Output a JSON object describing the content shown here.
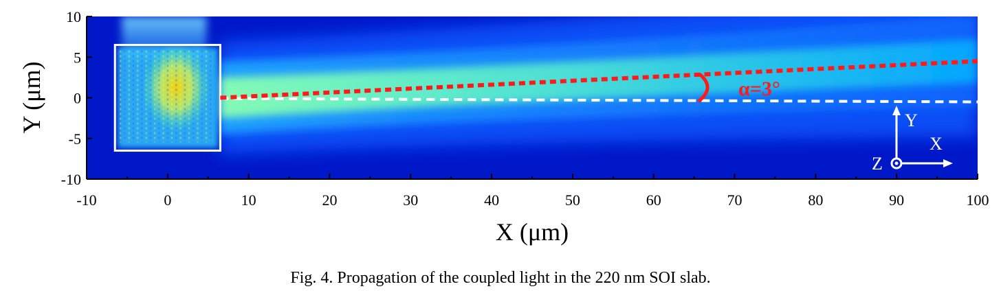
{
  "chart_data": {
    "type": "heatmap",
    "title": "",
    "xlabel": "X (μm)",
    "ylabel": "Y (μm)",
    "xlim": [
      -10,
      100
    ],
    "ylim": [
      -10,
      10
    ],
    "x_ticks": [
      "-10",
      "0",
      "10",
      "20",
      "30",
      "40",
      "50",
      "60",
      "70",
      "80",
      "90",
      "100"
    ],
    "y_ticks": [
      "10",
      "5",
      "0",
      "-5",
      "-10"
    ],
    "colormap": "jet",
    "source_box": {
      "x_range": [
        -6.5,
        6.5
      ],
      "y_range": [
        -6.5,
        6.5
      ],
      "color": "#ffffff"
    },
    "beam": {
      "start": [
        6.5,
        0
      ],
      "end": [
        100,
        4.5
      ],
      "center_y": 0,
      "spread_y_at_end": 6
    },
    "reference_line": {
      "y": 0,
      "x_range": [
        6.5,
        100
      ],
      "color": "#ffffff",
      "style": "dashed"
    },
    "tilted_line": {
      "start": [
        6.5,
        0
      ],
      "end": [
        100,
        4.5
      ],
      "color": "#ff1a1a",
      "style": "dotted"
    },
    "angle_annotation": {
      "text": "α=3°",
      "color": "#ff1a1a"
    },
    "axes_indicator": {
      "x": "X",
      "y": "Y",
      "z": "Z",
      "color": "#ffffff"
    }
  },
  "caption": "Fig. 4. Propagation of the coupled light in the 220 nm SOI slab."
}
